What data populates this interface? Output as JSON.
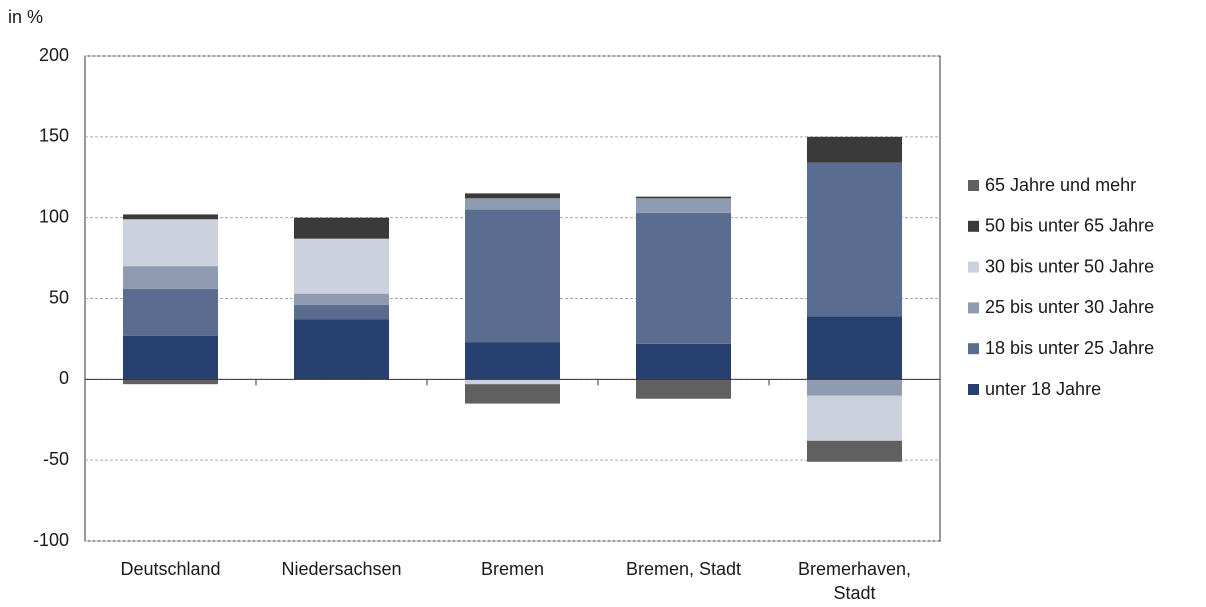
{
  "chart_data": {
    "type": "stacked-bar",
    "y_label": "in %",
    "categories": [
      "Deutschland",
      "Niedersachsen",
      "Bremen",
      "Bremen, Stadt",
      "Bremerhaven, Stadt"
    ],
    "series": [
      {
        "name": "unter 18 Jahre",
        "color": "#27406f",
        "values": [
          27,
          37,
          23,
          22,
          39
        ]
      },
      {
        "name": "18 bis unter 25 Jahre",
        "color": "#5a6d91",
        "values": [
          29,
          9,
          82,
          81,
          95
        ]
      },
      {
        "name": "25 bis unter 30 Jahre",
        "color": "#8e9bb0",
        "values": [
          14,
          7,
          7,
          9,
          -10
        ]
      },
      {
        "name": "30 bis unter 50 Jahre",
        "color": "#cbd1dd",
        "values": [
          29,
          34,
          -3,
          0,
          -28
        ]
      },
      {
        "name": "50 bis unter 65 Jahre",
        "color": "#3a3a3a",
        "values": [
          3,
          13,
          3,
          1,
          16
        ]
      },
      {
        "name": "65 Jahre und mehr",
        "color": "#606060",
        "values": [
          -3,
          0,
          -12,
          -12,
          -13
        ]
      }
    ],
    "ylim": [
      -100,
      200
    ],
    "yticks": [
      -100,
      -50,
      0,
      50,
      100,
      150,
      200
    ],
    "grid": true,
    "legend": "right"
  }
}
